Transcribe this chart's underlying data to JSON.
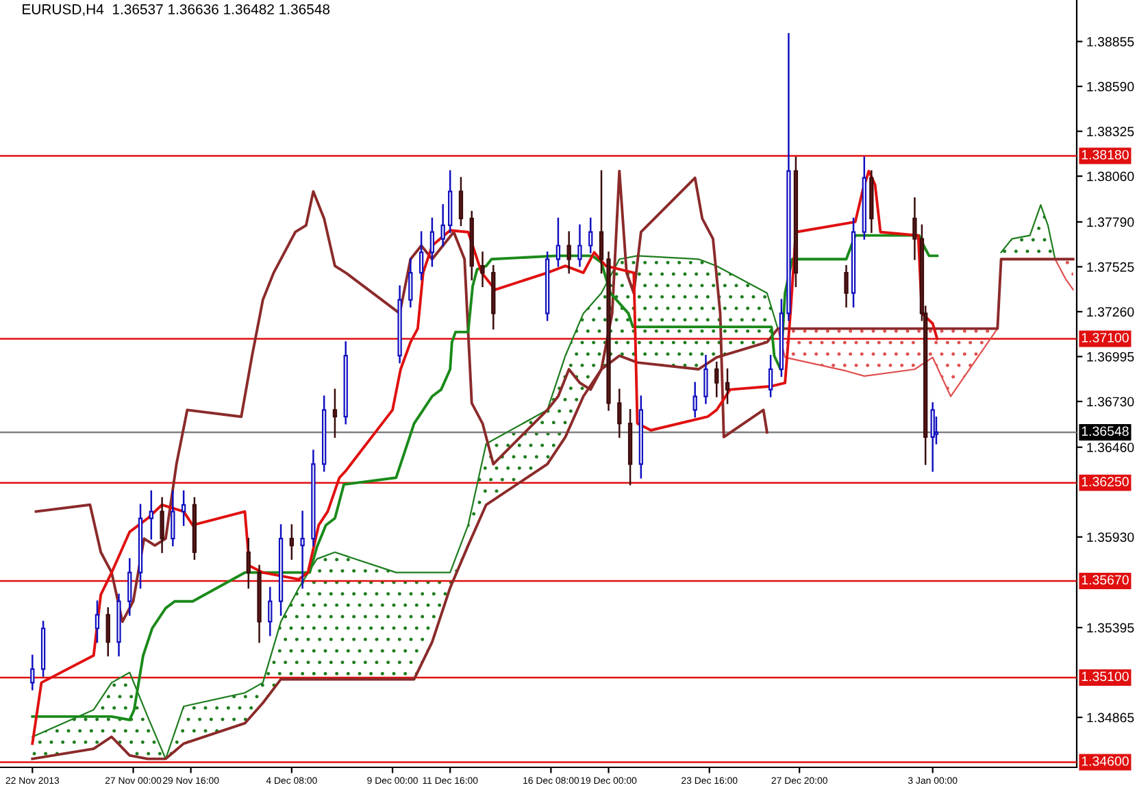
{
  "chart_data": {
    "type": "candlestick",
    "title": "EURUSD,H4  1.36537 1.36636 1.36482 1.36548",
    "x": [
      "2013-11-22T08:00",
      "2013-11-22T20:00",
      "2013-11-25T08:00",
      "2013-11-25T20:00",
      "2013-11-26T08:00",
      "2013-11-26T20:00",
      "2013-11-27T08:00",
      "2013-11-27T20:00",
      "2013-11-28T08:00",
      "2013-11-28T20:00",
      "2013-11-29T08:00",
      "2013-11-29T20:00",
      "2013-12-02T08:00",
      "2013-12-02T20:00",
      "2013-12-03T08:00",
      "2013-12-03T20:00",
      "2013-12-04T08:00",
      "2013-12-04T20:00",
      "2013-12-05T08:00",
      "2013-12-05T20:00",
      "2013-12-06T08:00",
      "2013-12-06T20:00",
      "2013-12-09T08:00",
      "2013-12-09T20:00",
      "2013-12-10T08:00",
      "2013-12-10T20:00",
      "2013-12-11T08:00",
      "2013-12-11T16:00",
      "2013-12-12T04:00",
      "2013-12-12T16:00",
      "2013-12-13T04:00",
      "2013-12-13T16:00",
      "2013-12-16T04:00",
      "2013-12-16T16:00",
      "2013-12-17T04:00",
      "2013-12-17T16:00",
      "2013-12-18T04:00",
      "2013-12-18T16:00",
      "2013-12-19T00:00",
      "2013-12-19T12:00",
      "2013-12-20T00:00",
      "2013-12-20T12:00",
      "2013-12-23T00:00",
      "2013-12-23T12:00",
      "2013-12-24T00:00",
      "2013-12-24T12:00",
      "2013-12-26T12:00",
      "2013-12-27T00:00",
      "2013-12-27T08:00",
      "2013-12-27T16:00",
      "2013-12-30T00:00",
      "2013-12-30T08:00",
      "2013-12-30T20:00",
      "2013-12-31T04:00",
      "2014-01-02T04:00",
      "2014-01-02T12:00",
      "2014-01-02T16:00",
      "2014-01-03T00:00",
      "2014-01-03T04:00"
    ],
    "ohlc": [
      [
        1.3507,
        1.3523,
        1.3503,
        1.3515
      ],
      [
        1.3515,
        1.3543,
        1.3511,
        1.3539
      ],
      [
        1.3539,
        1.3555,
        1.3531,
        1.3547
      ],
      [
        1.3547,
        1.3551,
        1.3523,
        1.3531
      ],
      [
        1.3531,
        1.3559,
        1.3523,
        1.3555
      ],
      [
        1.3555,
        1.358,
        1.3547,
        1.3572
      ],
      [
        1.3572,
        1.3612,
        1.3563,
        1.3604
      ],
      [
        1.3604,
        1.362,
        1.3592,
        1.3608
      ],
      [
        1.3608,
        1.3616,
        1.3584,
        1.3592
      ],
      [
        1.3592,
        1.362,
        1.3588,
        1.3608
      ],
      [
        1.3608,
        1.362,
        1.36,
        1.3612
      ],
      [
        1.3612,
        1.3616,
        1.358,
        1.3584
      ],
      [
        1.3584,
        1.3592,
        1.3563,
        1.3572
      ],
      [
        1.3572,
        1.3576,
        1.3531,
        1.3543
      ],
      [
        1.3543,
        1.3563,
        1.3535,
        1.3555
      ],
      [
        1.3555,
        1.36,
        1.3547,
        1.3592
      ],
      [
        1.3592,
        1.36,
        1.358,
        1.3588
      ],
      [
        1.3588,
        1.3608,
        1.3563,
        1.3592
      ],
      [
        1.3592,
        1.3644,
        1.3588,
        1.3636
      ],
      [
        1.3636,
        1.3676,
        1.3632,
        1.3668
      ],
      [
        1.3668,
        1.368,
        1.3652,
        1.3664
      ],
      [
        1.3664,
        1.3708,
        1.366,
        1.37
      ],
      [
        1.37,
        1.3741,
        1.3696,
        1.3733
      ],
      [
        1.3733,
        1.3757,
        1.3729,
        1.3749
      ],
      [
        1.3749,
        1.3773,
        1.3745,
        1.3761
      ],
      [
        1.3761,
        1.3781,
        1.3753,
        1.3773
      ],
      [
        1.3769,
        1.3789,
        1.3765,
        1.3777
      ],
      [
        1.3777,
        1.3809,
        1.3773,
        1.3797
      ],
      [
        1.3797,
        1.3805,
        1.3777,
        1.3781
      ],
      [
        1.3781,
        1.3785,
        1.3745,
        1.3753
      ],
      [
        1.3753,
        1.3761,
        1.3741,
        1.3749
      ],
      [
        1.3749,
        1.3753,
        1.3716,
        1.3725
      ],
      [
        1.3725,
        1.3761,
        1.3721,
        1.3757
      ],
      [
        1.3757,
        1.3781,
        1.3753,
        1.3765
      ],
      [
        1.3765,
        1.3773,
        1.3749,
        1.3757
      ],
      [
        1.3757,
        1.3777,
        1.3753,
        1.3765
      ],
      [
        1.3765,
        1.3781,
        1.3761,
        1.3773
      ],
      [
        1.3773,
        1.3809,
        1.3749,
        1.3757
      ],
      [
        1.3757,
        1.3761,
        1.3668,
        1.3672
      ],
      [
        1.3672,
        1.368,
        1.3652,
        1.366
      ],
      [
        1.366,
        1.3668,
        1.3624,
        1.3636
      ],
      [
        1.3636,
        1.3676,
        1.3628,
        1.3668
      ],
      [
        1.3668,
        1.3684,
        1.3664,
        1.3676
      ],
      [
        1.3676,
        1.37,
        1.3672,
        1.3692
      ],
      [
        1.3692,
        1.3696,
        1.3676,
        1.3684
      ],
      [
        1.3684,
        1.3692,
        1.3672,
        1.368
      ],
      [
        1.368,
        1.37,
        1.3676,
        1.3692
      ],
      [
        1.3692,
        1.3733,
        1.3688,
        1.3725
      ],
      [
        1.3725,
        1.389,
        1.3721,
        1.3809
      ],
      [
        1.3809,
        1.3817,
        1.3741,
        1.3749
      ],
      [
        1.3749,
        1.3753,
        1.3729,
        1.3737
      ],
      [
        1.3737,
        1.3781,
        1.3729,
        1.3773
      ],
      [
        1.3773,
        1.3817,
        1.3769,
        1.3805
      ],
      [
        1.3805,
        1.3809,
        1.3773,
        1.3781
      ],
      [
        1.3781,
        1.3793,
        1.3757,
        1.3769
      ],
      [
        1.3769,
        1.3777,
        1.3721,
        1.3725
      ],
      [
        1.3725,
        1.3729,
        1.3636,
        1.3652
      ],
      [
        1.3652,
        1.3672,
        1.3632,
        1.3668
      ],
      [
        1.36537,
        1.36636,
        1.36482,
        1.36548
      ]
    ],
    "series": [
      {
        "type": "line",
        "color": "#1e7d1e",
        "x": [
          "2013-11-22T08:00",
          "2013-11-25T04:00",
          "2013-11-26T00:00",
          "2013-11-26T20:00",
          "2013-11-27T16:00",
          "2013-11-28T12:00"
        ],
        "values": [
          1.3475,
          1.3491,
          1.3507,
          1.3513,
          1.3487,
          1.3462
        ],
        "upper": [
          1.3475,
          1.3491,
          1.3507,
          1.3513,
          1.3487,
          1.3462
        ],
        "lower": [
          1.3462,
          1.3468,
          1.3475,
          1.3464,
          1.3462,
          1.3462
        ]
      },
      {
        "type": "line",
        "color": "#1e7d1e",
        "upper": [
          1.3462,
          1.3493,
          1.3501,
          1.3507,
          1.3543,
          1.3563,
          1.358,
          1.3584,
          1.3572,
          1.3572,
          1.3572,
          1.3572,
          1.36,
          1.3648,
          1.3668,
          1.37,
          1.3725,
          1.3737,
          1.3757,
          1.3759,
          1.3757,
          1.3753,
          1.3737,
          1.3716
        ],
        "x": [
          "2013-11-28T12:00",
          "2013-11-29T08:00",
          "2013-12-02T04:00",
          "2013-12-03T00:00",
          "2013-12-03T20:00",
          "2013-12-04T16:00",
          "2013-12-05T12:00",
          "2013-12-06T08:00",
          "2013-12-09T04:00",
          "2013-12-10T00:00",
          "2013-12-10T20:00",
          "2013-12-11T16:00",
          "2013-12-12T12:00",
          "2013-12-13T08:00",
          "2013-12-16T04:00",
          "2013-12-17T00:00",
          "2013-12-17T20:00",
          "2013-12-18T16:00",
          "2013-12-19T12:00",
          "2013-12-20T08:00",
          "2013-12-23T04:00",
          "2013-12-24T00:00",
          "2013-12-26T08:00",
          "2013-12-26T20:00"
        ],
        "values": [
          1.3462,
          1.3493,
          1.3501,
          1.3507,
          1.3543,
          1.3563,
          1.358,
          1.3584,
          1.3572,
          1.3572,
          1.3572,
          1.3572,
          1.36,
          1.3648,
          1.3668,
          1.37,
          1.3725,
          1.3737,
          1.3757,
          1.3759,
          1.3757,
          1.3753,
          1.3737,
          1.3716
        ],
        "lower": [
          1.3462,
          1.3471,
          1.3483,
          1.3495,
          1.3509,
          1.3509,
          1.3509,
          1.3509,
          1.3509,
          1.3509,
          1.3531,
          1.3563,
          1.3588,
          1.3612,
          1.3636,
          1.3652,
          1.3676,
          1.3692,
          1.37,
          1.3696,
          1.3692,
          1.3699,
          1.3708,
          1.3716
        ]
      },
      {
        "type": "line",
        "color": "#e05050",
        "x": [
          "2013-12-26T20:00",
          "2013-12-27T04:00",
          "2013-12-30T00:00",
          "2013-12-30T20:00",
          "2014-01-02T04:00",
          "2014-01-03T00:00",
          "2014-01-03T20:00",
          "2014-01-06T00:00"
        ],
        "values": [
          1.3716,
          1.3699,
          1.3691,
          1.3688,
          1.3692,
          1.3699,
          1.3676,
          1.3716
        ],
        "upper": [
          1.3716,
          1.3716,
          1.3716,
          1.3716,
          1.3716,
          1.3716,
          1.3716,
          1.3716
        ],
        "lower": [
          1.3716,
          1.3699,
          1.3691,
          1.3688,
          1.3692,
          1.3699,
          1.3676,
          1.3716
        ]
      },
      {
        "type": "line",
        "color": "#1e7d1e",
        "x": [
          "2014-01-06T04:00",
          "2014-01-06T16:00",
          "2014-01-07T12:00",
          "2014-01-08T00:00",
          "2014-01-08T08:00",
          "2014-01-08T16:00"
        ],
        "values": [
          1.3761,
          1.3769,
          1.3771,
          1.3789,
          1.3777,
          1.3757
        ],
        "upper": [
          1.3761,
          1.3769,
          1.3771,
          1.3789,
          1.3777,
          1.3757
        ],
        "lower": [
          1.3757,
          1.3757,
          1.3757,
          1.3757,
          1.3757,
          1.3757
        ]
      },
      {
        "type": "line",
        "color": "#e05050",
        "x": [
          "2014-01-08T16:00",
          "2014-01-09T04:00",
          "2014-01-09T12:00"
        ],
        "values": [
          1.3757,
          1.3745,
          1.3739
        ],
        "upper": [
          1.3757,
          1.3757,
          1.3757
        ],
        "lower": [
          1.3757,
          1.3745,
          1.3739
        ]
      },
      {
        "type": "line",
        "color": "#8b2a2a",
        "x": [
          "2013-11-22T08:00",
          "2013-11-25T04:00",
          "2013-11-26T00:00",
          "2013-11-26T20:00",
          "2013-11-27T16:00",
          "2013-11-28T12:00",
          "2013-11-29T08:00",
          "2013-12-02T04:00",
          "2013-12-03T00:00",
          "2013-12-03T20:00",
          "2013-12-04T16:00",
          "2013-12-05T12:00",
          "2013-12-06T08:00",
          "2013-12-09T04:00",
          "2013-12-10T00:00",
          "2013-12-10T20:00",
          "2013-12-11T16:00",
          "2013-12-12T12:00",
          "2013-12-13T08:00",
          "2013-12-16T04:00",
          "2013-12-17T00:00",
          "2013-12-17T20:00",
          "2013-12-18T16:00",
          "2013-12-19T12:00",
          "2013-12-20T08:00",
          "2013-12-23T04:00",
          "2013-12-24T00:00",
          "2013-12-26T08:00",
          "2013-12-26T20:00",
          "2013-12-27T04:00",
          "2013-12-30T00:00",
          "2013-12-30T20:00",
          "2014-01-02T04:00",
          "2014-01-03T00:00",
          "2014-01-03T20:00",
          "2014-01-06T00:00",
          "2014-01-06T04:00",
          "2014-01-06T16:00",
          "2014-01-07T12:00",
          "2014-01-08T00:00",
          "2014-01-08T08:00",
          "2014-01-08T16:00",
          "2014-01-09T04:00",
          "2014-01-09T12:00"
        ],
        "values": [
          1.3462,
          1.3468,
          1.3475,
          1.3464,
          1.3462,
          1.3462,
          1.3471,
          1.3483,
          1.3495,
          1.3509,
          1.3509,
          1.3509,
          1.3509,
          1.3509,
          1.3509,
          1.3531,
          1.3563,
          1.3588,
          1.3612,
          1.3636,
          1.3652,
          1.3676,
          1.3692,
          1.37,
          1.3696,
          1.3692,
          1.3699,
          1.3708,
          1.3716,
          1.3716,
          1.3716,
          1.3716,
          1.3716,
          1.3716,
          1.3716,
          1.3716,
          1.3757,
          1.3757,
          1.3757,
          1.3757,
          1.3757,
          1.3757,
          1.3757,
          1.3757
        ]
      },
      {
        "type": "line",
        "color": "#8b2a2a",
        "x": [
          "2013-11-22T12:00",
          "2013-11-25T00:00",
          "2013-11-25T12:00",
          "2013-11-26T00:00",
          "2013-11-26T12:00",
          "2013-11-27T00:00",
          "2013-11-27T12:00",
          "2013-11-28T00:00",
          "2013-11-28T12:00",
          "2013-11-29T00:00",
          "2013-11-29T12:00",
          "2013-12-02T00:00",
          "2013-12-02T12:00",
          "2013-12-03T00:00",
          "2013-12-03T12:00",
          "2013-12-04T00:00",
          "2013-12-04T12:00",
          "2013-12-05T00:00",
          "2013-12-05T08:00",
          "2013-12-05T20:00",
          "2013-12-06T08:00",
          "2013-12-06T20:00",
          "2013-12-09T08:00",
          "2013-12-09T20:00",
          "2013-12-10T08:00",
          "2013-12-10T20:00",
          "2013-12-11T08:00",
          "2013-12-11T20:00",
          "2013-12-12T08:00",
          "2013-12-12T16:00",
          "2013-12-13T04:00",
          "2013-12-13T16:00",
          "2013-12-16T04:00",
          "2013-12-16T16:00",
          "2013-12-17T04:00",
          "2013-12-17T16:00",
          "2013-12-18T04:00",
          "2013-12-18T16:00",
          "2013-12-19T04:00",
          "2013-12-19T12:00",
          "2013-12-19T20:00",
          "2013-12-20T04:00",
          "2013-12-20T12:00",
          "2013-12-23T00:00",
          "2013-12-23T08:00",
          "2013-12-23T20:00",
          "2013-12-24T04:00",
          "2013-12-24T08:00",
          "2013-12-26T04:00",
          "2013-12-26T08:00"
        ],
        "values": [
          1.3608,
          1.3612,
          1.3584,
          1.3572,
          1.3543,
          1.3555,
          1.3592,
          1.3588,
          1.3592,
          1.3636,
          1.3668,
          1.3664,
          1.37,
          1.3733,
          1.3749,
          1.3761,
          1.3773,
          1.3777,
          1.3797,
          1.3781,
          1.3753,
          1.3749,
          1.3725,
          1.3757,
          1.3765,
          1.3757,
          1.3765,
          1.3773,
          1.3757,
          1.3672,
          1.366,
          1.3636,
          1.3668,
          1.3676,
          1.3692,
          1.3684,
          1.368,
          1.3692,
          1.3725,
          1.3809,
          1.3749,
          1.3737,
          1.3773,
          1.3805,
          1.3781,
          1.3769,
          1.3725,
          1.3652,
          1.3668,
          1.36548
        ]
      },
      {
        "type": "line",
        "color": "#1a8a1a",
        "x": [
          "2013-11-22T08:00",
          "2013-11-26T00:00",
          "2013-11-26T20:00",
          "2013-11-27T01:00",
          "2013-11-27T11:00",
          "2013-11-27T21:00",
          "2013-11-28T12:00",
          "2013-11-28T22:00",
          "2013-11-29T18:00",
          "2013-12-02T04:00",
          "2013-12-03T00:00",
          "2013-12-05T04:00",
          "2013-12-05T12:00",
          "2013-12-05T22:00",
          "2013-12-06T08:00",
          "2013-12-06T18:00",
          "2013-12-09T04:00",
          "2013-12-09T14:00",
          "2013-12-10T00:00",
          "2013-12-10T10:00",
          "2013-12-10T20:00",
          "2013-12-11T06:00",
          "2013-12-11T16:00",
          "2013-12-11T18:00",
          "2013-12-11T22:00",
          "2013-12-12T12:00",
          "2013-12-12T17:00",
          "2013-12-12T22:00",
          "2013-12-13T08:00",
          "2013-12-13T14:00",
          "2013-12-16T14:00",
          "2013-12-18T06:00",
          "2013-12-18T16:00",
          "2013-12-19T02:00",
          "2013-12-19T22:00",
          "2013-12-20T03:00",
          "2013-12-26T13:00",
          "2013-12-26T16:00",
          "2013-12-26T23:00",
          "2013-12-27T04:00",
          "2013-12-27T12:00",
          "2013-12-30T00:00",
          "2013-12-30T10:00",
          "2014-01-02T09:00",
          "2014-01-02T14:00",
          "2014-01-02T20:00",
          "2014-01-03T05:00"
        ],
        "values": [
          1.3487,
          1.3487,
          1.3485,
          1.3491,
          1.3523,
          1.3539,
          1.3551,
          1.3555,
          1.3555,
          1.3572,
          1.3572,
          1.3572,
          1.3587,
          1.36,
          1.3604,
          1.3624,
          1.3628,
          1.3644,
          1.366,
          1.3668,
          1.3676,
          1.368,
          1.3692,
          1.3708,
          1.3714,
          1.3714,
          1.3741,
          1.3751,
          1.3753,
          1.3757,
          1.3759,
          1.3759,
          1.3755,
          1.3737,
          1.3725,
          1.3717,
          1.3717,
          1.37,
          1.3692,
          1.3737,
          1.3757,
          1.3757,
          1.3771,
          1.3771,
          1.3765,
          1.3759,
          1.3759
        ]
      },
      {
        "type": "line",
        "color": "#e01010",
        "x": [
          "2013-11-22T08:00",
          "2013-11-22T18:00",
          "2013-11-25T04:00",
          "2013-11-25T12:00",
          "2013-11-26T00:00",
          "2013-11-26T20:00",
          "2013-11-27T16:00",
          "2013-11-28T08:00",
          "2013-11-29T08:00",
          "2013-11-29T18:00",
          "2013-12-02T04:00",
          "2013-12-02T09:00",
          "2013-12-03T00:00",
          "2013-12-04T16:00",
          "2013-12-05T02:00",
          "2013-12-05T14:00",
          "2013-12-06T00:00",
          "2013-12-06T13:00",
          "2013-12-06T20:00",
          "2013-12-09T00:00",
          "2013-12-09T09:00",
          "2013-12-09T20:00",
          "2013-12-10T04:00",
          "2013-12-10T10:00",
          "2013-12-10T20:00",
          "2013-12-11T16:00",
          "2013-12-12T12:00",
          "2013-12-13T03:00",
          "2013-12-13T18:00",
          "2013-12-16T04:00",
          "2013-12-17T00:00",
          "2013-12-17T20:00",
          "2013-12-18T08:00",
          "2013-12-18T21:00",
          "2013-12-20T04:00",
          "2013-12-20T08:00",
          "2013-12-20T23:00",
          "2013-12-23T14:00",
          "2013-12-24T00:00",
          "2013-12-24T15:00",
          "2013-12-26T13:00",
          "2013-12-27T04:00",
          "2013-12-27T10:00",
          "2013-12-27T16:00",
          "2013-12-30T10:00",
          "2013-12-30T18:00",
          "2013-12-31T01:00",
          "2013-12-31T08:00",
          "2013-12-31T14:00",
          "2014-01-02T08:00",
          "2014-01-02T12:00",
          "2014-01-03T00:00",
          "2014-01-03T05:00"
        ],
        "values": [
          1.3471,
          1.3507,
          1.3523,
          1.3559,
          1.3572,
          1.3596,
          1.3604,
          1.3612,
          1.3608,
          1.36,
          1.3608,
          1.3576,
          1.3572,
          1.3568,
          1.3572,
          1.36,
          1.3608,
          1.3628,
          1.3632,
          1.3668,
          1.3692,
          1.3708,
          1.3716,
          1.3749,
          1.3765,
          1.3774,
          1.3773,
          1.3749,
          1.3739,
          1.3749,
          1.3753,
          1.3749,
          1.3761,
          1.3753,
          1.3749,
          1.366,
          1.3656,
          1.3664,
          1.3668,
          1.368,
          1.3682,
          1.3684,
          1.3725,
          1.3773,
          1.3779,
          1.3797,
          1.3809,
          1.3801,
          1.3773,
          1.3771,
          1.3725,
          1.3719,
          1.371
        ]
      }
    ],
    "xlim": [
      "2013-11-20T20:00",
      "2014-01-09T16:00"
    ],
    "ylim": [
      1.3457,
      1.391
    ],
    "xticks": [
      {
        "value": "2013-11-22T08:00",
        "label": "22 Nov 2013"
      },
      {
        "value": "2013-11-27T00:00",
        "label": "27 Nov 00:00"
      },
      {
        "value": "2013-11-29T16:00",
        "label": "29 Nov 16:00"
      },
      {
        "value": "2013-12-04T08:00",
        "label": "4 Dec 08:00"
      },
      {
        "value": "2013-12-09T00:00",
        "label": "9 Dec 00:00"
      },
      {
        "value": "2013-12-11T16:00",
        "label": "11 Dec 16:00"
      },
      {
        "value": "2013-12-16T08:00",
        "label": "16 Dec 08:00"
      },
      {
        "value": "2013-12-19T00:00",
        "label": "19 Dec 00:00"
      },
      {
        "value": "2013-12-23T16:00",
        "label": "23 Dec 16:00"
      },
      {
        "value": "2013-12-27T20:00",
        "label": "27 Dec 20:00"
      },
      {
        "value": "2014-01-03T00:00",
        "label": "3 Jan 00:00"
      }
    ],
    "yticks": [
      {
        "value": 1.38855,
        "label": "1.38855"
      },
      {
        "value": 1.3859,
        "label": "1.38590"
      },
      {
        "value": 1.38325,
        "label": "1.38325"
      },
      {
        "value": 1.3806,
        "label": "1.38060"
      },
      {
        "value": 1.3779,
        "label": "1.37790"
      },
      {
        "value": 1.37525,
        "label": "1.37525"
      },
      {
        "value": 1.3726,
        "label": "1.37260"
      },
      {
        "value": 1.36995,
        "label": "1.36995"
      },
      {
        "value": 1.3673,
        "label": "1.36730"
      },
      {
        "value": 1.3646,
        "label": "1.36460"
      },
      {
        "value": 1.3593,
        "label": "1.35930"
      },
      {
        "value": 1.35395,
        "label": "1.35395"
      },
      {
        "value": 1.34865,
        "label": "1.34865"
      }
    ],
    "ref_lines": [
      {
        "axis": "y",
        "value": 1.3818,
        "label": "1.38180",
        "color": "#e01010"
      },
      {
        "axis": "y",
        "value": 1.371,
        "label": "1.37100",
        "color": "#e01010"
      },
      {
        "axis": "y",
        "value": 1.3625,
        "label": "1.36250",
        "color": "#e01010"
      },
      {
        "axis": "y",
        "value": 1.3567,
        "label": "1.35670",
        "color": "#e01010"
      },
      {
        "axis": "y",
        "value": 1.351,
        "label": "1.35100",
        "color": "#e01010"
      },
      {
        "axis": "y",
        "value": 1.346,
        "label": "1.34600",
        "color": "#e01010"
      },
      {
        "axis": "y",
        "value": 1.36548,
        "label": "1.36548",
        "color": "#808080"
      }
    ],
    "grid": false,
    "legend": false
  }
}
